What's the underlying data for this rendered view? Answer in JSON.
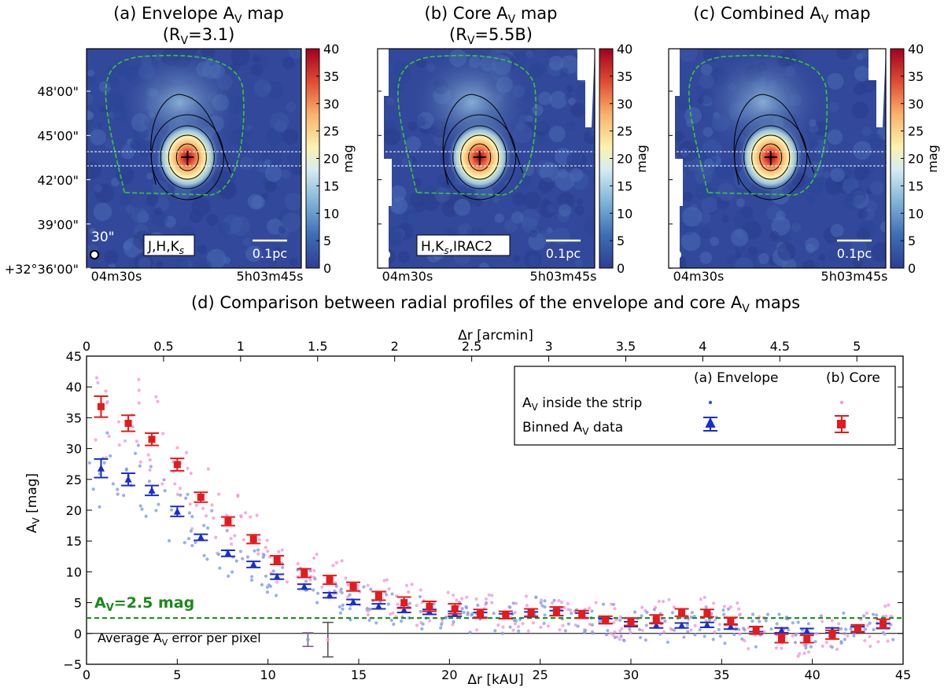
{
  "colors": {
    "core": "#e41a1c",
    "envelope": "#1a2ecc",
    "core_pt": "#f29ad9",
    "env_pt": "#7f9de6",
    "threshold": "#1a8a1a",
    "contour_green": "#36c936"
  },
  "maps": [
    {
      "title1": "(a) Envelope A",
      "title_sub": "V",
      "title2": " map",
      "subtitle": "(R_V=3.1)",
      "sub_a": "(R",
      "sub_b": "V",
      "sub_c": "=3.1)",
      "label_box": "J,H,K",
      "label_sub": "s",
      "label_tail": "",
      "scalebar": "0.1pc",
      "beam": "30\"",
      "colorbar_unit": "mag",
      "colorbar_ticks": [
        "0",
        "5",
        "10",
        "15",
        "20",
        "25",
        "30",
        "35",
        "40"
      ]
    },
    {
      "title1": "(b) Core A",
      "title_sub": "V",
      "title2": " map",
      "subtitle": "(R_V=5.5B)",
      "sub_a": "(R",
      "sub_b": "V",
      "sub_c": "=5.5B)",
      "label_box": "H,K",
      "label_sub": "s",
      "label_tail": ",IRAC2",
      "scalebar": "0.1pc",
      "beam": "",
      "colorbar_unit": "mag",
      "colorbar_ticks": [
        "0",
        "5",
        "10",
        "15",
        "20",
        "25",
        "30",
        "35",
        "40"
      ]
    },
    {
      "title1": "(c) Combined A",
      "title_sub": "V",
      "title2": " map",
      "subtitle": "",
      "sub_a": "",
      "sub_b": "",
      "sub_c": "",
      "label_box": "",
      "label_sub": "",
      "label_tail": "",
      "scalebar": "0.1pc",
      "beam": "",
      "colorbar_unit": "mag",
      "colorbar_ticks": [
        "0",
        "5",
        "10",
        "15",
        "20",
        "25",
        "30",
        "35",
        "40"
      ]
    }
  ],
  "dec_ticks": [
    "48'00\"",
    "45'00\"",
    "42'00\"",
    "39'00\"",
    "+32°36'00\""
  ],
  "ra_ticks": [
    "04m30s",
    "5h03m45s"
  ],
  "panel_d_title": "(d) Comparison between radial profiles of the envelope and core A",
  "panel_d_title_sub": "V",
  "panel_d_title_tail": " maps",
  "legend": {
    "col1": "(a) Envelope",
    "col2": "(b) Core",
    "row1": "A",
    "row1_sub": "V",
    "row1_tail": " inside the strip",
    "row2": "Binned A",
    "row2_sub": "V",
    "row2_tail": " data"
  },
  "threshold_label": "A",
  "threshold_sub": "V",
  "threshold_tail": "=2.5 mag",
  "error_label": "Average A",
  "error_sub": "V",
  "error_tail": " error per pixel",
  "chart_data": {
    "type": "scatter",
    "title": "(d) Comparison between radial profiles of the envelope and core AV maps",
    "xlabel": "Δr [kAU]",
    "x2label": "Δr [arcmin]",
    "ylabel": "AV [mag]",
    "xlim": [
      0,
      45
    ],
    "ylim": [
      -5,
      45
    ],
    "x2lim": [
      0,
      5.3
    ],
    "xticks": [
      0,
      5,
      10,
      15,
      20,
      25,
      30,
      35,
      40,
      45
    ],
    "x2ticks": [
      0,
      0.5,
      1,
      1.5,
      2,
      2.5,
      3,
      3.5,
      4,
      4.5,
      5
    ],
    "x2ticklabels": [
      "0",
      "0.5",
      "1",
      "1.5",
      "2",
      "2.5",
      "3",
      "3.5",
      "4",
      "4.5",
      "5"
    ],
    "yticks": [
      -5,
      0,
      5,
      10,
      15,
      20,
      25,
      30,
      35,
      40,
      45
    ],
    "threshold": 2.5,
    "series": [
      {
        "name": "(a) Envelope binned",
        "marker": "triangle",
        "x": [
          0.8,
          2.3,
          3.6,
          5.0,
          6.3,
          7.8,
          9.2,
          10.5,
          12.0,
          13.4,
          14.7,
          16.1,
          17.5,
          18.9,
          20.3,
          21.7,
          23.1,
          24.5,
          25.9,
          27.3,
          28.6,
          30.0,
          31.4,
          32.8,
          34.2,
          35.5,
          36.9,
          38.3,
          39.7,
          41.1,
          42.5,
          43.9
        ],
        "y": [
          26.8,
          25.0,
          23.2,
          19.8,
          15.6,
          13.0,
          11.2,
          9.2,
          7.6,
          6.2,
          5.1,
          4.4,
          3.8,
          3.5,
          3.2,
          3.0,
          2.8,
          3.1,
          3.3,
          2.9,
          2.0,
          1.5,
          1.3,
          1.3,
          1.4,
          1.1,
          0.7,
          0.5,
          0.4,
          0.5,
          0.7,
          1.2
        ],
        "err": [
          1.5,
          1.0,
          0.8,
          0.8,
          0.5,
          0.5,
          0.5,
          0.4,
          0.4,
          0.4,
          0.4,
          0.4,
          0.4,
          0.4,
          0.4,
          0.4,
          0.4,
          0.4,
          0.4,
          0.4,
          0.4,
          0.4,
          0.4,
          0.4,
          0.4,
          0.4,
          0.4,
          0.4,
          0.4,
          0.4,
          0.4,
          0.4
        ]
      },
      {
        "name": "(b) Core binned",
        "marker": "square",
        "x": [
          0.8,
          2.3,
          3.6,
          5.0,
          6.3,
          7.8,
          9.2,
          10.5,
          12.0,
          13.4,
          14.7,
          16.1,
          17.5,
          18.9,
          20.3,
          21.7,
          23.1,
          24.5,
          25.9,
          27.3,
          28.6,
          30.0,
          31.4,
          32.8,
          34.2,
          35.5,
          36.9,
          38.3,
          39.7,
          41.1,
          42.5,
          43.9
        ],
        "y": [
          36.8,
          34.1,
          31.5,
          27.4,
          22.1,
          18.2,
          15.3,
          11.9,
          9.8,
          8.7,
          7.6,
          6.1,
          5.0,
          4.4,
          4.0,
          3.2,
          3.0,
          3.4,
          3.6,
          3.1,
          2.2,
          1.9,
          2.3,
          3.4,
          3.3,
          2.0,
          0.5,
          -0.8,
          -0.9,
          -0.2,
          0.8,
          1.6
        ],
        "err": [
          1.7,
          1.3,
          1.0,
          1.0,
          0.8,
          0.7,
          0.7,
          0.7,
          0.7,
          0.7,
          0.7,
          0.7,
          0.9,
          0.8,
          0.8,
          0.7,
          0.6,
          0.6,
          0.7,
          0.6,
          0.6,
          0.6,
          0.7,
          0.6,
          0.6,
          0.6,
          0.6,
          0.7,
          0.6,
          0.7,
          0.6,
          0.7
        ]
      }
    ],
    "avg_error": {
      "envelope": {
        "x": 12.2,
        "y": -1.0,
        "err": 1.1
      },
      "core": {
        "x": 13.3,
        "y": -1.0,
        "err": 2.8
      }
    }
  }
}
